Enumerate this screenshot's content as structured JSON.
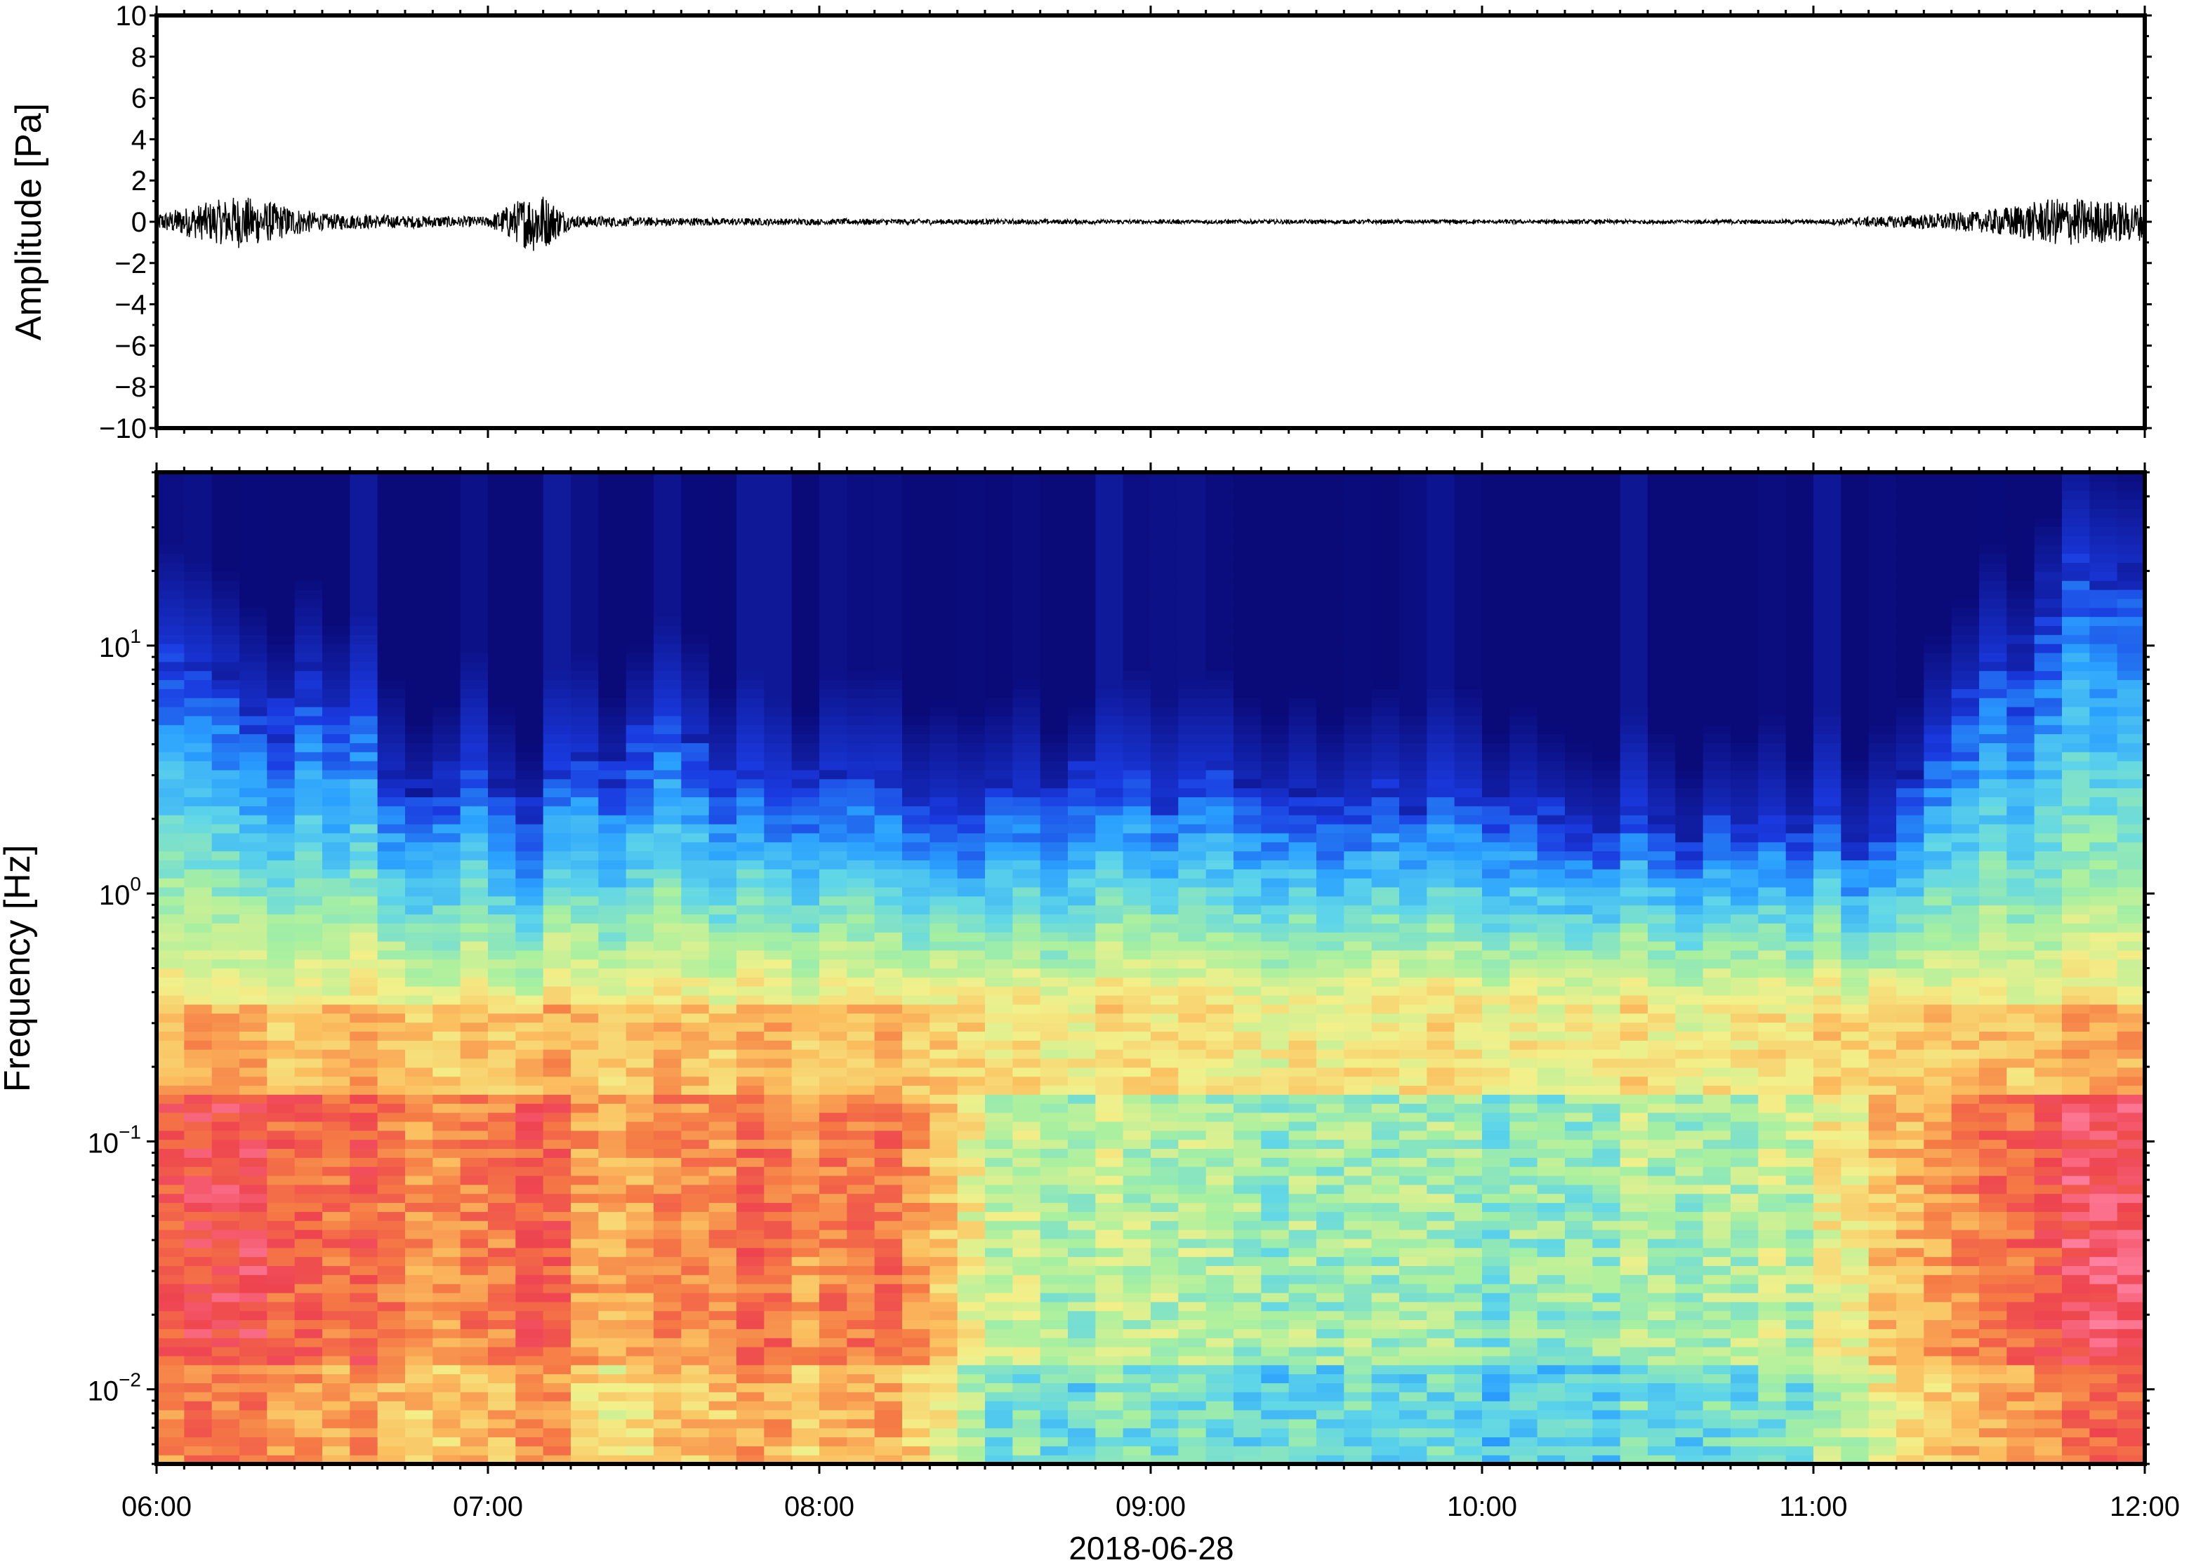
{
  "figure": {
    "date_label": "2018-06-28",
    "x_tick_labels": [
      "06:00",
      "07:00",
      "08:00",
      "09:00",
      "10:00",
      "11:00",
      "12:00"
    ]
  },
  "chart_data": [
    {
      "type": "line",
      "panel": "waveform",
      "ylabel": "Amplitude [Pa]",
      "xlabel": "",
      "xlim": [
        "06:00",
        "12:00"
      ],
      "ylim": [
        -10,
        10
      ],
      "y_tick_labels": [
        "10",
        "8",
        "6",
        "4",
        "2",
        "0",
        "−2",
        "−4",
        "−6",
        "−8",
        "−10"
      ],
      "y_tick_values": [
        10,
        8,
        6,
        4,
        2,
        0,
        -2,
        -4,
        -6,
        -8,
        -10
      ],
      "grid": false,
      "series": [
        {
          "x": [
            "06:00",
            "06:15",
            "06:30",
            "06:45",
            "07:00",
            "07:09",
            "07:15",
            "07:30",
            "08:00",
            "09:00",
            "10:00",
            "11:00",
            "11:30",
            "11:45",
            "12:00"
          ],
          "y_envelope": [
            0.4,
            1.3,
            0.4,
            0.3,
            0.25,
            1.6,
            0.3,
            0.2,
            0.15,
            0.1,
            0.1,
            0.1,
            0.5,
            1.2,
            0.9
          ]
        }
      ]
    },
    {
      "type": "heatmap",
      "panel": "spectrogram",
      "ylabel": "Frequency [Hz]",
      "xlabel": "2018-06-28",
      "xlim": [
        "06:00",
        "12:00"
      ],
      "ylim": [
        0.005,
        50
      ],
      "yscale": "log",
      "y_tick_labels": [
        {
          "base": "10",
          "exp": "1",
          "value": 10
        },
        {
          "base": "10",
          "exp": "0",
          "value": 1
        },
        {
          "base": "10",
          "exp": "−1",
          "value": 0.1
        },
        {
          "base": "10",
          "exp": "−2",
          "value": 0.01
        }
      ],
      "colormap": "rainbow (dark blue = low, red/pink = high)",
      "colors": [
        "#0a0a78",
        "#1a3ae0",
        "#2aa0ff",
        "#5fd6e8",
        "#a8f0a0",
        "#f2f08a",
        "#fbc060",
        "#f57a45",
        "#ee4450",
        "#ff80a0"
      ],
      "x_hours": [
        6,
        6.25,
        6.5,
        6.75,
        7,
        7.15,
        7.25,
        7.5,
        7.75,
        8,
        8.25,
        8.5,
        9,
        9.5,
        10,
        10.5,
        11,
        11.25,
        11.5,
        11.75,
        12
      ],
      "upper_edge_hz": [
        12,
        6,
        8,
        3,
        4,
        2,
        3.5,
        5,
        3,
        3,
        3,
        2.5,
        3,
        2.5,
        2.5,
        2,
        2,
        2,
        8,
        20,
        25
      ],
      "low_freq_level": [
        0.82,
        0.9,
        0.82,
        0.78,
        0.75,
        0.9,
        0.7,
        0.72,
        0.78,
        0.75,
        0.8,
        0.5,
        0.45,
        0.45,
        0.42,
        0.45,
        0.5,
        0.68,
        0.78,
        0.9,
        0.92
      ]
    }
  ]
}
